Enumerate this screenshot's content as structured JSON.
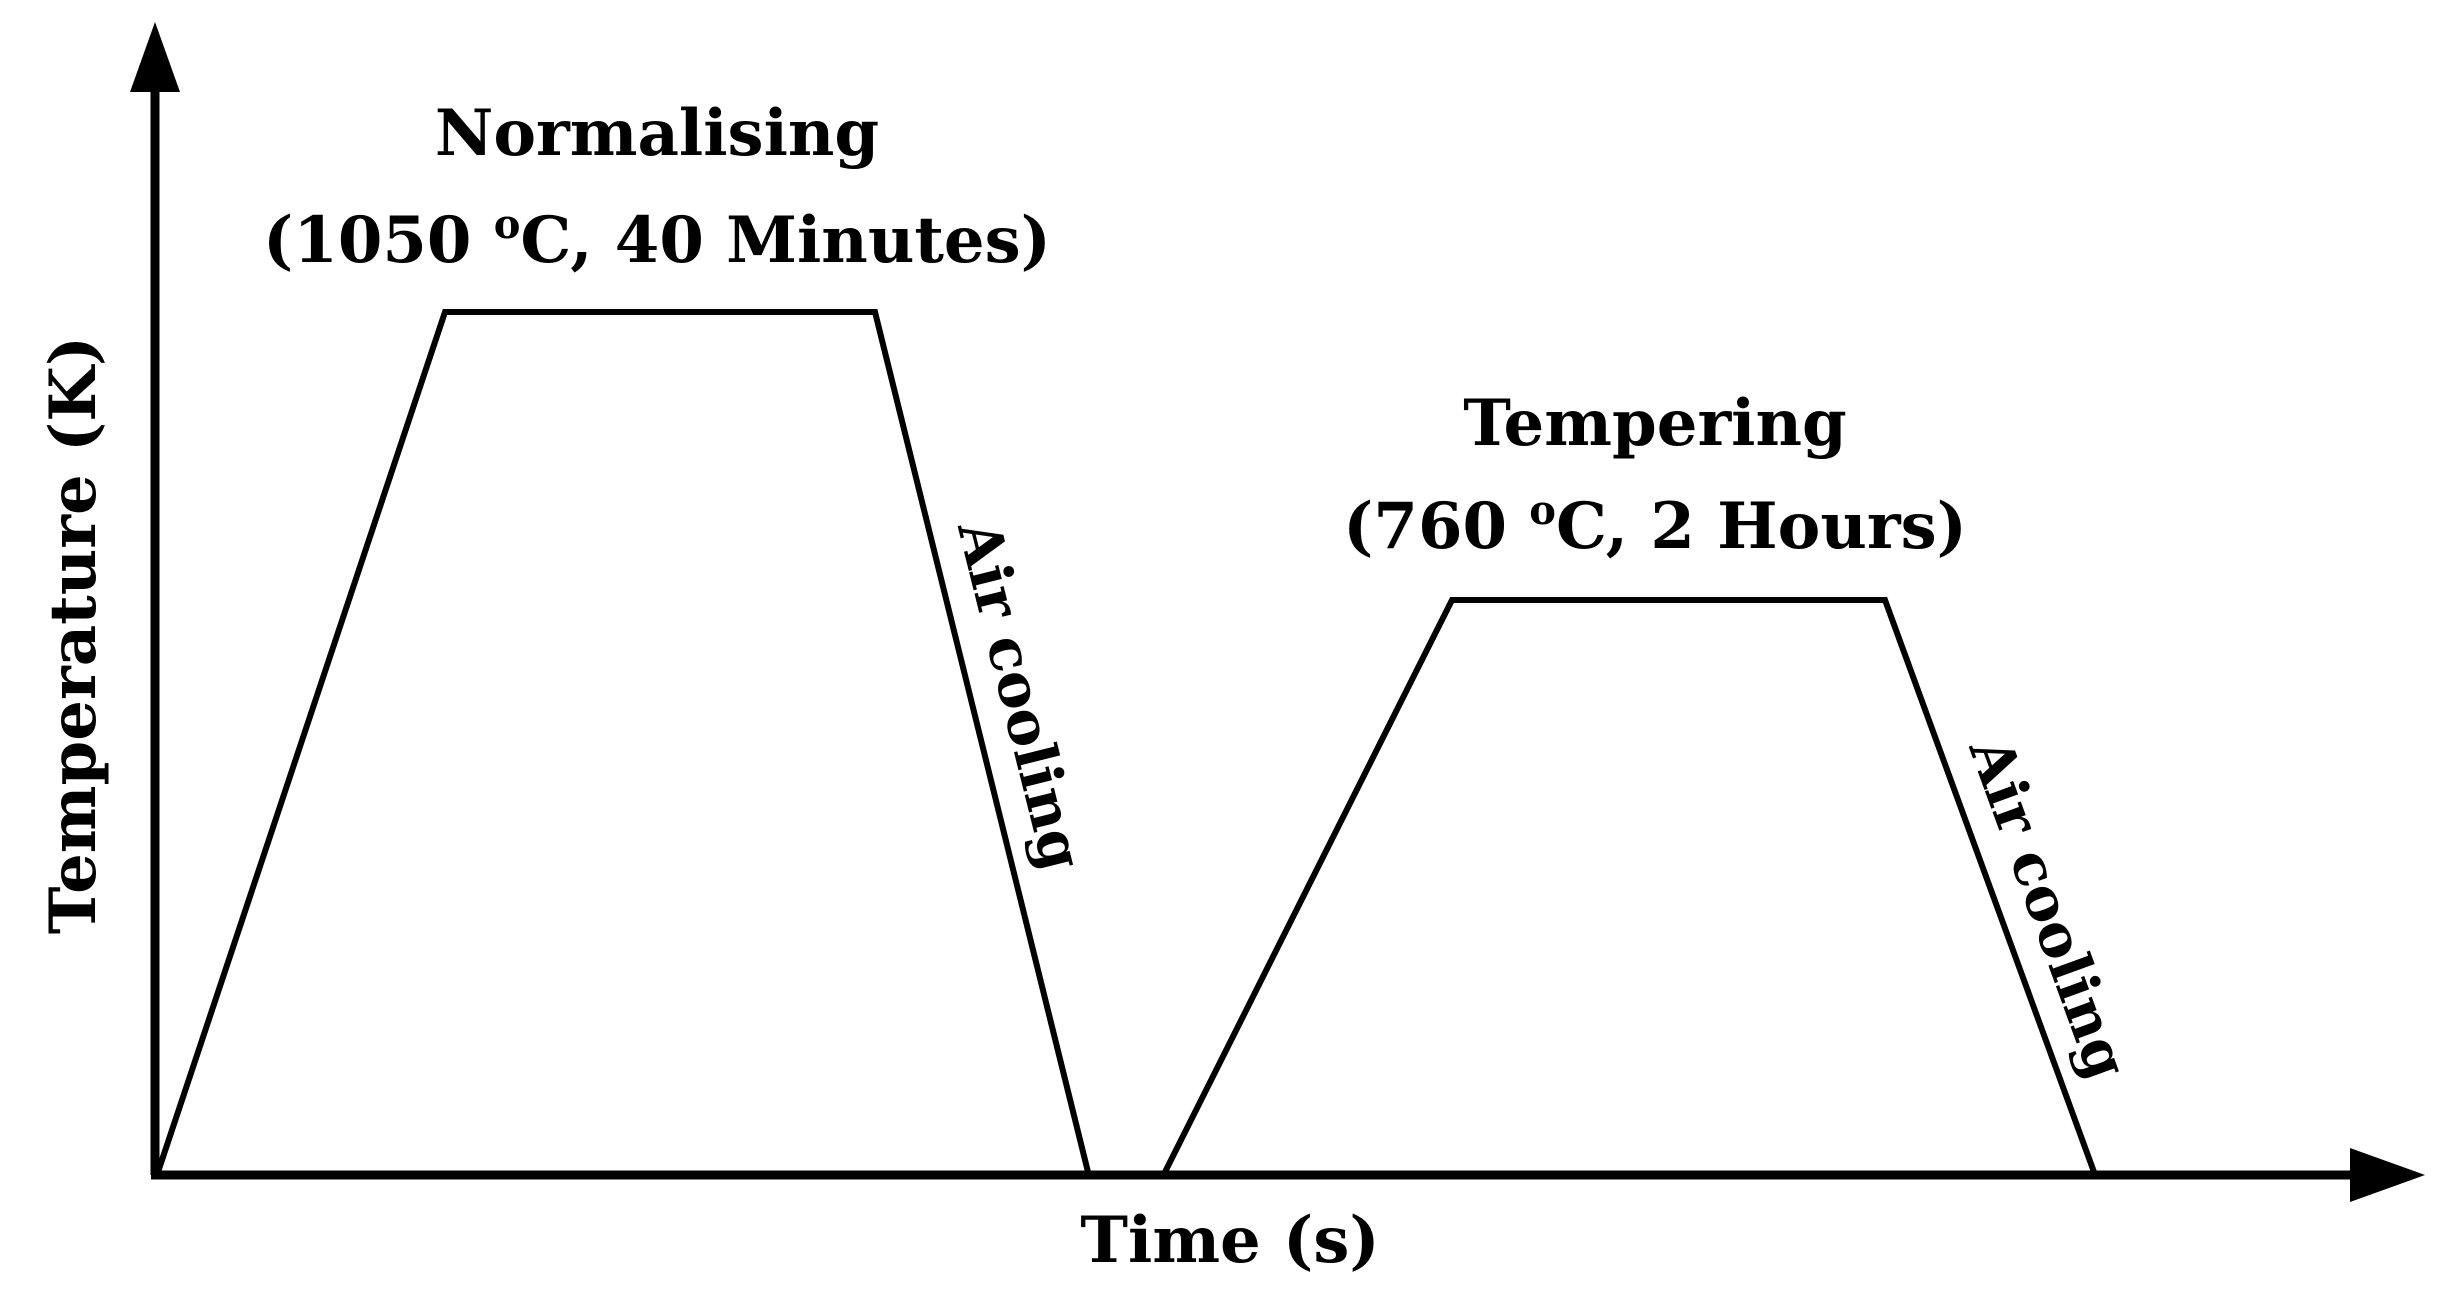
{
  "axes": {
    "y_label": "Temperature (K)",
    "x_label": "Time (s)"
  },
  "stages": [
    {
      "title": "Normalising",
      "condition_prefix": "(1050 ",
      "condition_degree": "o",
      "condition_suffix": "C, 40 Minutes)",
      "cooling_label": "Air cooling"
    },
    {
      "title": "Tempering",
      "condition_prefix": "(760 ",
      "condition_degree": "o",
      "condition_suffix": "C, 2 Hours)",
      "cooling_label": "Air cooling"
    }
  ],
  "colors": {
    "line": "#000000",
    "background": "#ffffff"
  }
}
